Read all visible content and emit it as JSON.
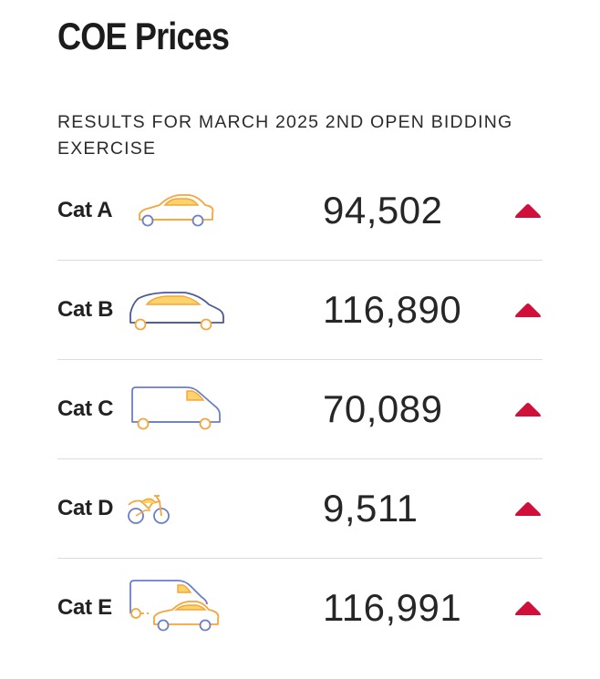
{
  "page": {
    "title": "COE Prices",
    "subtitle": "RESULTS FOR MARCH 2025 2ND OPEN BIDDING EXERCISE"
  },
  "colors": {
    "vehicle_outline_blue": "#6b7fc4",
    "vehicle_outline_orange": "#f5a53a",
    "vehicle_fill_yellow": "#fbd36b",
    "trend_up_red": "#d0103a",
    "divider": "#dcdcdc"
  },
  "categories": [
    {
      "label": "Cat A",
      "price": "94,502",
      "icon": "sedan-car-icon",
      "trend": "up"
    },
    {
      "label": "Cat B",
      "price": "116,890",
      "icon": "large-car-icon",
      "trend": "up"
    },
    {
      "label": "Cat C",
      "price": "70,089",
      "icon": "goods-van-icon",
      "trend": "up"
    },
    {
      "label": "Cat D",
      "price": "9,511",
      "icon": "motorcycle-icon",
      "trend": "up"
    },
    {
      "label": "Cat E",
      "price": "116,991",
      "icon": "open-category-icon",
      "trend": "up"
    }
  ]
}
